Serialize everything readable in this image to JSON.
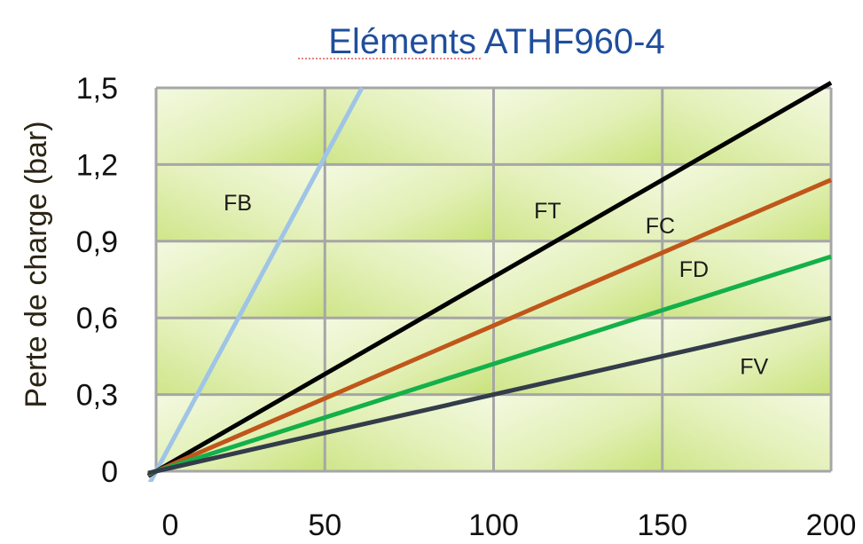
{
  "chart_data": {
    "type": "line",
    "title": "Eléments ATHF960-4",
    "xlabel": "",
    "ylabel": "Perte de charge (bar)",
    "xlim": [
      0,
      200
    ],
    "ylim": [
      0,
      1.5
    ],
    "x_ticks": [
      "0",
      "50",
      "100",
      "150",
      "200"
    ],
    "y_ticks": [
      "0",
      "0,3",
      "0,6",
      "0,9",
      "1,2",
      "1,5"
    ],
    "grid": true,
    "series": [
      {
        "name": "FB",
        "color": "#9fc4e6",
        "points": [
          [
            0,
            0
          ],
          [
            61,
            1.5
          ]
        ]
      },
      {
        "name": "FT",
        "color": "#000000",
        "points": [
          [
            0,
            0
          ],
          [
            200,
            1.52
          ]
        ]
      },
      {
        "name": "FC",
        "color": "#c0561a",
        "points": [
          [
            0,
            0
          ],
          [
            200,
            1.14
          ]
        ]
      },
      {
        "name": "FD",
        "color": "#14b04a",
        "points": [
          [
            0,
            0
          ],
          [
            200,
            0.84
          ]
        ]
      },
      {
        "name": "FV",
        "color": "#333c4a",
        "points": [
          [
            0,
            0
          ],
          [
            200,
            0.6
          ]
        ]
      }
    ],
    "colors": {
      "title": "#1f4e9c",
      "plot_fill_light": "#f0f7da",
      "plot_fill_dark": "#cfe58a",
      "grid": "#a6a6a6"
    }
  }
}
